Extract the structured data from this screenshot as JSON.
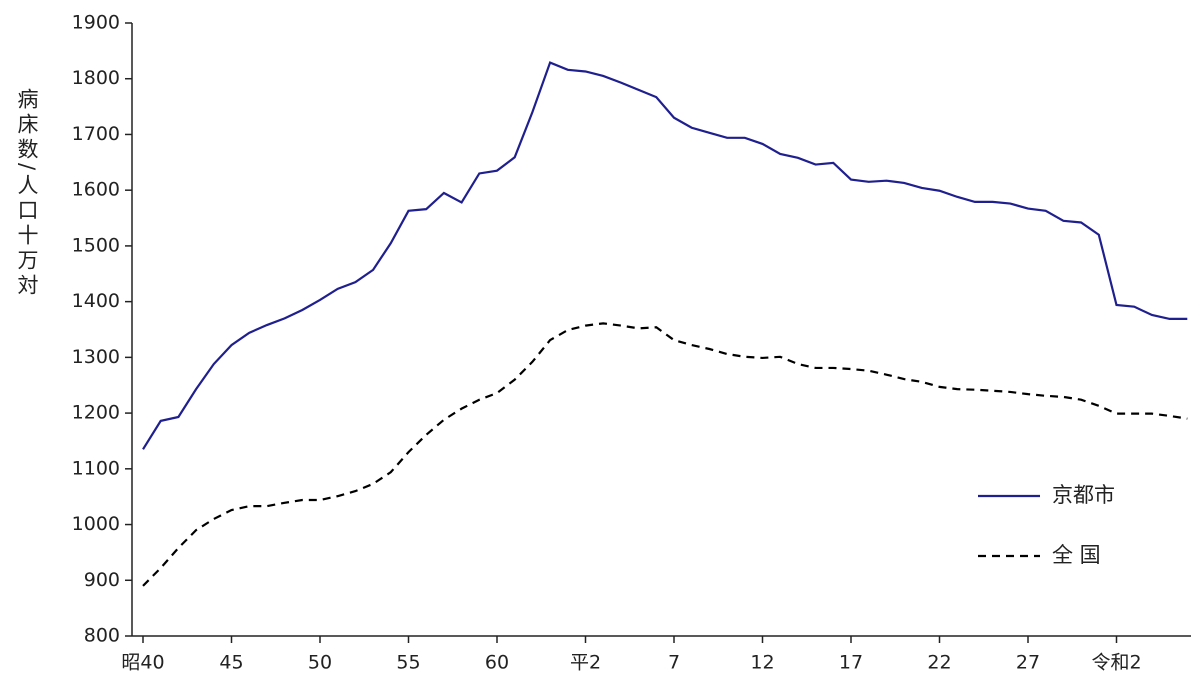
{
  "chart_data": {
    "type": "line",
    "y_label": "病床数/人口十万対",
    "categories": [
      "昭40",
      null,
      null,
      null,
      null,
      "45",
      null,
      null,
      null,
      null,
      "50",
      null,
      null,
      null,
      null,
      "55",
      null,
      null,
      null,
      null,
      "60",
      null,
      null,
      null,
      null,
      "平2",
      null,
      null,
      null,
      null,
      "7",
      null,
      null,
      null,
      null,
      "12",
      null,
      null,
      null,
      null,
      "17",
      null,
      null,
      null,
      null,
      "22",
      null,
      null,
      null,
      null,
      "27",
      null,
      null,
      null,
      null,
      "令和2",
      null,
      null,
      null,
      null
    ],
    "series": [
      {
        "name": "京都市",
        "color": "#1f1f8f",
        "linestyle": "solid",
        "values": [
          1135,
          1186,
          1193,
          1243,
          1288,
          1322,
          1344,
          1358,
          1370,
          1385,
          1403,
          1423,
          1435,
          1457,
          1505,
          1563,
          1566,
          1595,
          1578,
          1630,
          1635,
          1659,
          1740,
          1829,
          1816,
          1813,
          1805,
          1793,
          1780,
          1767,
          1730,
          1712,
          1703,
          1694,
          1694,
          1683,
          1665,
          1658,
          1646,
          1649,
          1619,
          1615,
          1617,
          1613,
          1604,
          1599,
          1588,
          1579,
          1579,
          1576,
          1567,
          1563,
          1545,
          1542,
          1520,
          1394,
          1391,
          1376,
          1369,
          1369
        ]
      },
      {
        "name": "全 国",
        "color": "#000000",
        "linestyle": "dashed",
        "values": [
          890,
          922,
          958,
          990,
          1010,
          1026,
          1033,
          1033,
          1039,
          1044,
          1044,
          1051,
          1060,
          1073,
          1094,
          1130,
          1161,
          1188,
          1208,
          1224,
          1236,
          1260,
          1292,
          1331,
          1349,
          1357,
          1361,
          1357,
          1352,
          1354,
          1331,
          1322,
          1315,
          1306,
          1301,
          1299,
          1301,
          1288,
          1281,
          1281,
          1279,
          1276,
          1269,
          1261,
          1256,
          1247,
          1243,
          1242,
          1240,
          1238,
          1234,
          1231,
          1229,
          1224,
          1213,
          1199,
          1199,
          1199,
          1195,
          1190
        ]
      }
    ],
    "ylim": [
      800,
      1900
    ],
    "yticks": [
      800,
      900,
      1000,
      1100,
      1200,
      1300,
      1400,
      1500,
      1600,
      1700,
      1800,
      1900
    ],
    "grid": false
  }
}
